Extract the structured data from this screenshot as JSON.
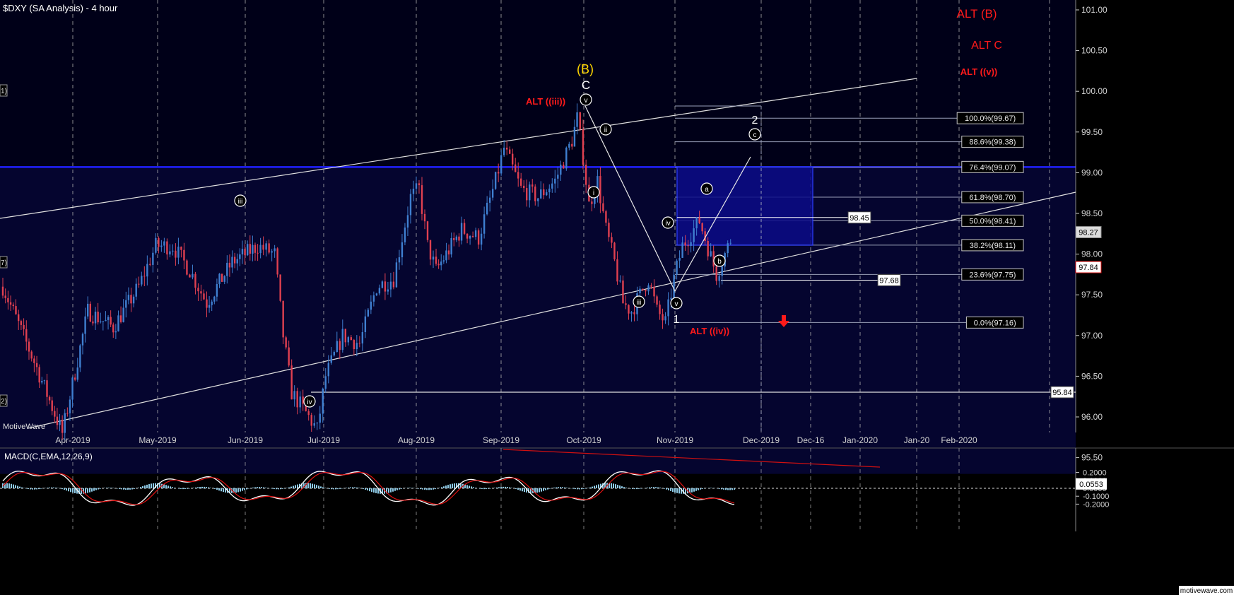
{
  "title": "$DXY (SA Analysis) - 4 hour",
  "watermark": "MotiveWave",
  "footer_brand": "motivewave.com",
  "colors": {
    "bg": "#000000",
    "plot_bg": "#000018",
    "zone": "#00007a",
    "grid": "#b0b0b0",
    "candle_up": "#3f7fd0",
    "candle_down": "#e04050",
    "red_label": "#ff1a1a",
    "yellow_label": "#ffd700",
    "macd_line": "#ffffff",
    "signal_line": "#e01010",
    "histogram": "#8ecae6"
  },
  "chart_data": [
    {
      "type": "candlestick",
      "title": "$DXY (SA Analysis) - 4 hour",
      "x_ticks": [
        "Apr-2019",
        "May-2019",
        "Jun-2019",
        "Jul-2019",
        "Aug-2019",
        "Sep-2019",
        "Oct-2019",
        "Nov-2019",
        "Dec-2019",
        "Dec-16",
        "Jan-2020",
        "Jan-20",
        "Feb-2020"
      ],
      "y_ticks": [
        "101.00",
        "100.50",
        "100.00",
        "99.50",
        "99.00",
        "98.50",
        "98.00",
        "97.50",
        "97.00",
        "96.50",
        "96.00",
        "95.50"
      ],
      "ylim": [
        95.3,
        101.1
      ],
      "price_path": [
        [
          0,
          97.6
        ],
        [
          4,
          96.6
        ],
        [
          7,
          95.8
        ],
        [
          10,
          97.3
        ],
        [
          13,
          97.1
        ],
        [
          16,
          97.6
        ],
        [
          18,
          98.1
        ],
        [
          20,
          98.1
        ],
        [
          22,
          97.8
        ],
        [
          24,
          97.4
        ],
        [
          27,
          97.9
        ],
        [
          30,
          98.1
        ],
        [
          32,
          98.0
        ],
        [
          33,
          97.0
        ],
        [
          34,
          96.3
        ],
        [
          36,
          96.0
        ],
        [
          37,
          95.84
        ],
        [
          38,
          96.5
        ],
        [
          40,
          97.0
        ],
        [
          42,
          96.9
        ],
        [
          44,
          97.6
        ],
        [
          46,
          97.7
        ],
        [
          48,
          98.7
        ],
        [
          49,
          98.8
        ],
        [
          50,
          98.1
        ],
        [
          51,
          97.8
        ],
        [
          54,
          98.3
        ],
        [
          56,
          98.2
        ],
        [
          58,
          98.9
        ],
        [
          59,
          99.3
        ],
        [
          61,
          98.8
        ],
        [
          63,
          98.7
        ],
        [
          65,
          98.9
        ],
        [
          67,
          99.4
        ],
        [
          67.6,
          99.67
        ],
        [
          68.3,
          99.2
        ],
        [
          69,
          98.6
        ],
        [
          70,
          98.9
        ],
        [
          71,
          98.3
        ],
        [
          72,
          97.9
        ],
        [
          73,
          97.4
        ],
        [
          74,
          97.3
        ],
        [
          75,
          97.5
        ],
        [
          76,
          97.7
        ],
        [
          77,
          97.3
        ],
        [
          78,
          97.16
        ],
        [
          79,
          97.7
        ],
        [
          80,
          98.1
        ],
        [
          82,
          98.41
        ],
        [
          84,
          97.75
        ],
        [
          85,
          98.0
        ],
        [
          86,
          98.27
        ]
      ],
      "fib_levels": [
        {
          "label": "100.0%(99.67)",
          "value": 99.67
        },
        {
          "label": "88.6%(99.38)",
          "value": 99.38
        },
        {
          "label": "76.4%(99.07)",
          "value": 99.07
        },
        {
          "label": "61.8%(98.70)",
          "value": 98.7
        },
        {
          "label": "50.0%(98.41)",
          "value": 98.41
        },
        {
          "label": "38.2%(98.11)",
          "value": 98.11
        },
        {
          "label": "23.6%(97.75)",
          "value": 97.75
        },
        {
          "label": "0.0%(97.16)",
          "value": 97.16
        }
      ],
      "price_boxes": [
        "98.45",
        "97.68",
        "95.84"
      ],
      "right_markers": [
        "98.27",
        "97.84"
      ],
      "left_edge_fragments": [
        "1)",
        "7)",
        "2)"
      ],
      "wave_labels_circled": [
        "iii",
        "iv",
        "v",
        "ii",
        "i",
        "iii",
        "iv",
        "v",
        "a",
        "b",
        "c"
      ],
      "wave_labels_plain": [
        "(B)",
        "C",
        "2",
        "1"
      ],
      "alt_labels": [
        "ALT (B)",
        "ALT C",
        "ALT ((v))",
        "ALT ((iii))",
        "ALT ((iv))"
      ]
    },
    {
      "type": "line",
      "title": "MACD(C,EMA,12,26,9)",
      "series_values": {
        "macd": "0.0553"
      },
      "y_ticks": [
        "0.2000",
        "0.1000",
        "0.0000",
        "-0.1000",
        "-0.2000"
      ],
      "ylim": [
        -0.27,
        0.27
      ]
    }
  ]
}
